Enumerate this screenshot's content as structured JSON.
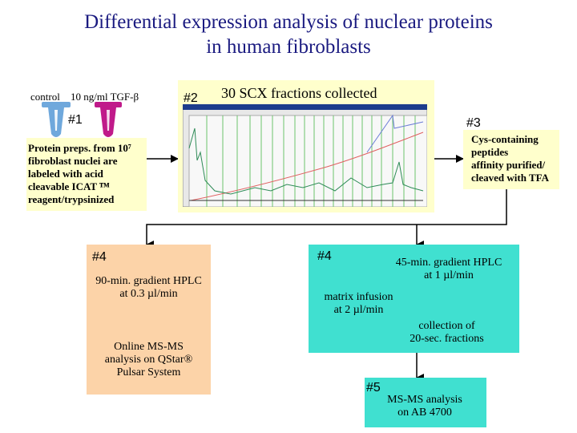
{
  "title": {
    "line1": "Differential expression analysis of nuclear proteins",
    "line2": "in human fibroblasts"
  },
  "step1": {
    "marker": "#1",
    "tube_labels": [
      "control",
      "10 ng/ml TGF-β"
    ],
    "text": [
      "Protein preps. from 10⁷",
      "fibroblast nuclei are",
      "labeled with acid",
      "cleavable ICAT ᵀᴹ",
      "reagent/trypsinized"
    ]
  },
  "step2": {
    "marker": "#2",
    "label": "30 SCX fractions collected"
  },
  "step3": {
    "marker": "#3",
    "text": [
      "Cys-containing",
      "peptides",
      "affinity purified/",
      "cleaved with TFA"
    ]
  },
  "branch_left": {
    "marker": "#4",
    "hplc": [
      "90-min. gradient HPLC",
      "at 0.3 µl/min"
    ],
    "ms": [
      "Online MS-MS",
      "analysis on QStar®",
      "Pulsar System"
    ]
  },
  "branch_right": {
    "marker": "#4",
    "hplc": [
      "45-min. gradient HPLC",
      "at 1 µl/min"
    ],
    "infusion": [
      "matrix infusion",
      "at 2 µl/min"
    ],
    "collection": [
      "collection of",
      "20-sec. fractions"
    ]
  },
  "step5": {
    "marker": "#5",
    "text": [
      "MS-MS analysis",
      "on AB 4700"
    ]
  },
  "colors": {
    "title": "#1a1a80",
    "yellow_box": "#ffffcc",
    "orange_box": "#fcd3a8",
    "cyan_box": "#40e0d0",
    "tube_blue": "#6fa8dc",
    "tube_magenta": "#c01a8a"
  }
}
